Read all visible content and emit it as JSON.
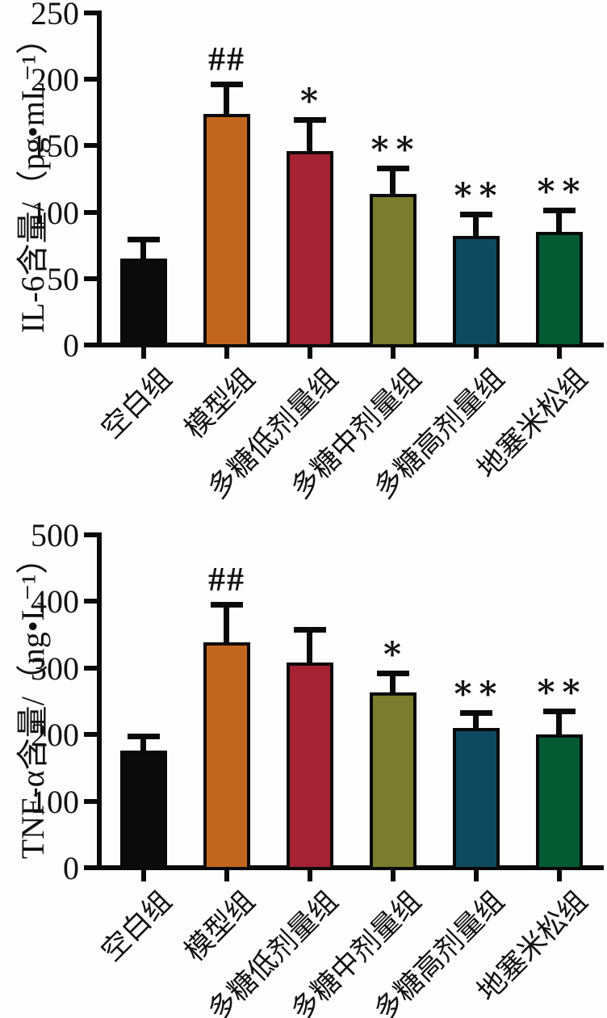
{
  "colors": {
    "axis": "#0a0a0a",
    "text": "#111111",
    "background": "#fdfdfd"
  },
  "chart_data": [
    {
      "type": "bar",
      "title": "",
      "ylabel": "IL-6含量/（pg•mL⁻¹）",
      "xlabel": "",
      "ylim": [
        0,
        250
      ],
      "yticks": [
        0,
        50,
        100,
        150,
        200,
        250
      ],
      "grid": false,
      "legend": null,
      "categories": [
        "空白组",
        "模型组",
        "多糖低剂量组",
        "多糖中剂量组",
        "多糖高剂量组",
        "地塞米松组"
      ],
      "values": [
        65,
        174,
        146,
        114,
        82,
        85
      ],
      "errors": [
        12,
        20,
        21,
        17,
        14,
        14
      ],
      "annotations": [
        "",
        "##",
        "*",
        "**",
        "**",
        "**"
      ],
      "bar_colors": [
        "#0b0b0b",
        "#c1671d",
        "#a42233",
        "#7b7c2d",
        "#0d4a5e",
        "#035b33"
      ]
    },
    {
      "type": "bar",
      "title": "",
      "ylabel": "TNF-α含量/（ng•L⁻¹）",
      "xlabel": "",
      "ylim": [
        0,
        500
      ],
      "yticks": [
        0,
        100,
        200,
        300,
        400,
        500
      ],
      "grid": false,
      "legend": null,
      "categories": [
        "空白组",
        "模型组",
        "多糖低剂量组",
        "多糖中剂量组",
        "多糖高剂量组",
        "地塞米松组"
      ],
      "values": [
        176,
        338,
        308,
        263,
        210,
        200
      ],
      "errors": [
        17,
        53,
        45,
        25,
        18,
        30
      ],
      "annotations": [
        "",
        "##",
        "",
        "*",
        "**",
        "**"
      ],
      "bar_colors": [
        "#0b0b0b",
        "#c1671d",
        "#a42233",
        "#7b7c2d",
        "#0d4a5e",
        "#035b33"
      ]
    }
  ]
}
